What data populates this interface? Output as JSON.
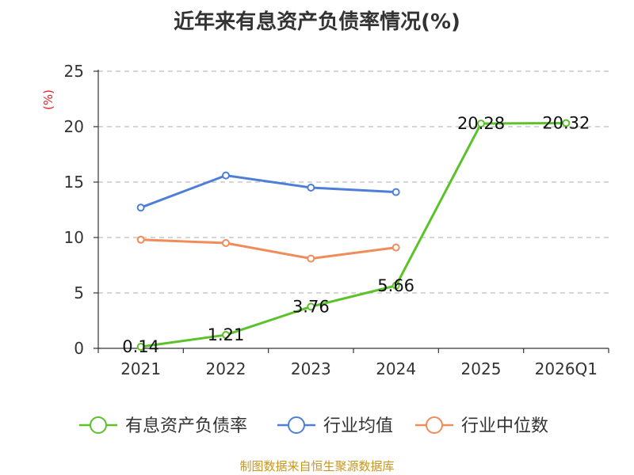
{
  "chart_data": {
    "type": "line",
    "title": "近年来有息资产负债率情况(%)",
    "ylabel": "(%)",
    "xlabel": "",
    "categories": [
      "2021",
      "2022",
      "2023",
      "2024",
      "2025",
      "2026Q1"
    ],
    "ylim": [
      0,
      25
    ],
    "yticks": [
      0,
      5,
      10,
      15,
      20,
      25
    ],
    "grid": "horizontal dashed",
    "legend_position": "bottom",
    "series": [
      {
        "name": "有息资产负债率",
        "color": "#5cc22a",
        "values": [
          0.14,
          1.21,
          3.76,
          5.66,
          20.28,
          20.32
        ],
        "labels": [
          "0.14",
          "1.21",
          "3.76",
          "5.66",
          "20.28",
          "20.32"
        ]
      },
      {
        "name": "行业均值",
        "color": "#4e7fd8",
        "values": [
          12.7,
          15.6,
          14.5,
          14.1,
          null,
          null
        ]
      },
      {
        "name": "行业中位数",
        "color": "#f08c5a",
        "values": [
          9.8,
          9.5,
          8.1,
          9.1,
          null,
          null
        ]
      }
    ],
    "source": "制图数据来自恒生聚源数据库"
  }
}
